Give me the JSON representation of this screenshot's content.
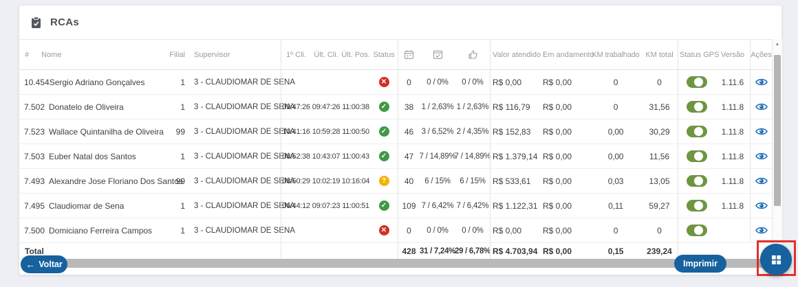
{
  "title": {
    "text": "RCAs",
    "icon": "clipboard-check-icon"
  },
  "colors": {
    "accent_blue": "#17619f",
    "status_ok_green": "#3f9a43",
    "status_error_red": "#d32f26",
    "status_warn_amber": "#f4b301",
    "gps_toggle_green": "#6f9542",
    "eye_icon_blue": "#1768b3",
    "highlight_red": "#e3302b"
  },
  "icons": {
    "scroll_up": "▲",
    "back_arrow": "←"
  },
  "status_icons": {
    "ok": "✓",
    "error": "✕",
    "warn": "?"
  },
  "table": {
    "headers": {
      "num": "#",
      "nome": "Nome",
      "filial": "Filial",
      "supervisor": "Supervisor",
      "cli1": "1º Cli.",
      "ult_cli": "Últ. Cli.",
      "ult_pos": "Últ. Pos.",
      "status": "Status",
      "icon_cols": [
        "calendar-icon",
        "calendar-check-icon",
        "thumbs-up-icon"
      ],
      "valor": "Valor atendido",
      "em_andamento": "Em andamento",
      "km_trabalhado": "KM trabalhado",
      "km_total": "KM total",
      "gps": "Status GPS",
      "versao": "Versão",
      "acoes": "Ações"
    },
    "rows": [
      {
        "num": "10.454",
        "nome": "Sergio Adriano Gonçalves",
        "filial": "1",
        "supervisor": "3 - CLAUDIOMAR DE SENA",
        "cli1": "",
        "ult_cli": "",
        "ult_pos": "",
        "status": "error",
        "visitas": "0",
        "pedidos": "0 / 0%",
        "positivados": "0 / 0%",
        "valor": "R$ 0,00",
        "em_andamento": "R$ 0,00",
        "km_trabalhado": "0",
        "km_total": "0",
        "gps": true,
        "versao": "1.11.6"
      },
      {
        "num": "7.502",
        "nome": "Donatelo de Oliveira",
        "filial": "1",
        "supervisor": "3 - CLAUDIOMAR DE SENA",
        "cli1": "09:47:26",
        "ult_cli": "09:47:26",
        "ult_pos": "11:00:38",
        "status": "ok",
        "visitas": "38",
        "pedidos": "1 / 2,63%",
        "positivados": "1 / 2,63%",
        "valor": "R$ 116,79",
        "em_andamento": "R$ 0,00",
        "km_trabalhado": "0",
        "km_total": "31,56",
        "gps": true,
        "versao": "1.11.8"
      },
      {
        "num": "7.523",
        "nome": "Wallace Quintanilha de Oliveira",
        "filial": "99",
        "supervisor": "3 - CLAUDIOMAR DE SENA",
        "cli1": "10:41:16",
        "ult_cli": "10:59:28",
        "ult_pos": "11:00:50",
        "status": "ok",
        "visitas": "46",
        "pedidos": "3 / 6,52%",
        "positivados": "2 / 4,35%",
        "valor": "R$ 152,83",
        "em_andamento": "R$ 0,00",
        "km_trabalhado": "0,00",
        "km_total": "30,29",
        "gps": true,
        "versao": "1.11.8"
      },
      {
        "num": "7.503",
        "nome": "Euber Natal dos Santos",
        "filial": "1",
        "supervisor": "3 - CLAUDIOMAR DE SENA",
        "cli1": "08:52:38",
        "ult_cli": "10:43:07",
        "ult_pos": "11:00:43",
        "status": "ok",
        "visitas": "47",
        "pedidos": "7 / 14,89%",
        "positivados": "7 / 14,89%",
        "valor": "R$ 1.379,14",
        "em_andamento": "R$ 0,00",
        "km_trabalhado": "0,00",
        "km_total": "11,56",
        "gps": true,
        "versao": "1.11.8"
      },
      {
        "num": "7.493",
        "nome": "Alexandre Jose Floriano Dos Santos",
        "filial": "99",
        "supervisor": "3 - CLAUDIOMAR DE SENA",
        "cli1": "08:50:29",
        "ult_cli": "10:02:19",
        "ult_pos": "10:16:04",
        "status": "warn",
        "visitas": "40",
        "pedidos": "6 / 15%",
        "positivados": "6 / 15%",
        "valor": "R$ 533,61",
        "em_andamento": "R$ 0,00",
        "km_trabalhado": "0,03",
        "km_total": "13,05",
        "gps": true,
        "versao": "1.11.8"
      },
      {
        "num": "7.495",
        "nome": "Claudiomar de Sena",
        "filial": "1",
        "supervisor": "3 - CLAUDIOMAR DE SENA",
        "cli1": "06:44:12",
        "ult_cli": "09:07:23",
        "ult_pos": "11:00:51",
        "status": "ok",
        "visitas": "109",
        "pedidos": "7 / 6,42%",
        "positivados": "7 / 6,42%",
        "valor": "R$ 1.122,31",
        "em_andamento": "R$ 0,00",
        "km_trabalhado": "0,11",
        "km_total": "59,27",
        "gps": true,
        "versao": "1.11.8"
      },
      {
        "num": "7.500",
        "nome": "Domiciano Ferreira Campos",
        "filial": "1",
        "supervisor": "3 - CLAUDIOMAR DE SENA",
        "cli1": "",
        "ult_cli": "",
        "ult_pos": "",
        "status": "error",
        "visitas": "0",
        "pedidos": "0 / 0%",
        "positivados": "0 / 0%",
        "valor": "R$ 0,00",
        "em_andamento": "R$ 0,00",
        "km_trabalhado": "0",
        "km_total": "0",
        "gps": true,
        "versao": ""
      }
    ],
    "total": {
      "label": "Total",
      "visitas": "428",
      "pedidos": "31 / 7,24%",
      "positivados": "29 / 6,78%",
      "valor": "R$ 4.703,94",
      "em_andamento": "R$ 0,00",
      "km_trabalhado": "0,15",
      "km_total": "239,24"
    }
  },
  "footer": {
    "voltar": "Voltar",
    "imprimir": "Imprimir",
    "fab_icon": "grid-icon"
  }
}
